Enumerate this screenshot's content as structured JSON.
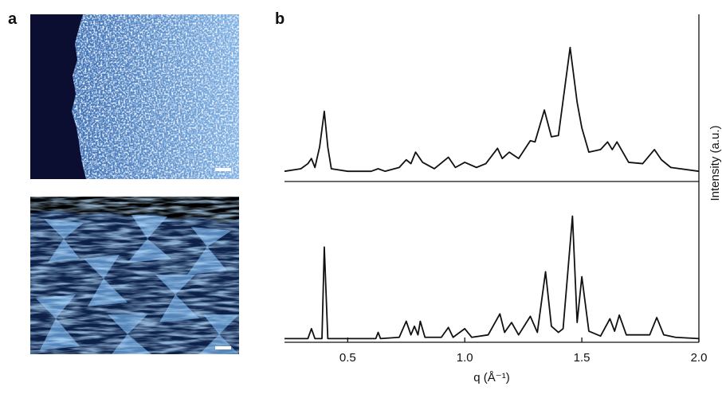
{
  "figure": {
    "panel_a_label": "a",
    "panel_b_label": "b"
  },
  "chart_data": [
    {
      "type": "line",
      "color": "#111111",
      "ylabel": "Intensity (a.u.)",
      "xlim": [
        0.23,
        2.0
      ],
      "ylim": [
        -6,
        125
      ],
      "x": [
        0.23,
        0.3,
        0.33,
        0.345,
        0.36,
        0.38,
        0.4,
        0.415,
        0.43,
        0.5,
        0.6,
        0.63,
        0.66,
        0.72,
        0.75,
        0.77,
        0.79,
        0.82,
        0.87,
        0.93,
        0.96,
        1.0,
        1.05,
        1.09,
        1.14,
        1.16,
        1.19,
        1.23,
        1.28,
        1.3,
        1.34,
        1.37,
        1.4,
        1.45,
        1.48,
        1.5,
        1.53,
        1.58,
        1.61,
        1.63,
        1.65,
        1.7,
        1.76,
        1.81,
        1.84,
        1.88,
        2.0
      ],
      "values": [
        2,
        4,
        8,
        12,
        5,
        21,
        49,
        21,
        4,
        2,
        2,
        4,
        2,
        5,
        11,
        8,
        17,
        9,
        4,
        13,
        5,
        9,
        5,
        8,
        20,
        12,
        17,
        12,
        26,
        25,
        50,
        29,
        30,
        99,
        56,
        36,
        17,
        19,
        25,
        19,
        25,
        9,
        8,
        19,
        11,
        5,
        2
      ]
    },
    {
      "type": "line",
      "color": "#111111",
      "xlabel": "q (Å⁻¹)",
      "xlim": [
        0.23,
        2.0
      ],
      "ylim": [
        -3,
        127
      ],
      "xticks": [
        0.5,
        {
          "value": 1.0,
          "label": "1.0"
        },
        1.5,
        {
          "value": 2.0,
          "label": "2.0"
        }
      ],
      "x": [
        0.23,
        0.33,
        0.345,
        0.36,
        0.39,
        0.4,
        0.415,
        0.5,
        0.62,
        0.63,
        0.64,
        0.72,
        0.75,
        0.77,
        0.785,
        0.8,
        0.81,
        0.83,
        0.9,
        0.93,
        0.95,
        1.0,
        1.03,
        1.1,
        1.15,
        1.17,
        1.2,
        1.23,
        1.28,
        1.31,
        1.345,
        1.37,
        1.4,
        1.42,
        1.46,
        1.48,
        1.5,
        1.53,
        1.58,
        1.62,
        1.64,
        1.66,
        1.69,
        1.79,
        1.82,
        1.85,
        1.9,
        2.0
      ],
      "values": [
        0,
        0,
        8,
        0,
        0,
        74,
        0,
        0,
        0,
        5,
        0,
        1,
        14,
        3,
        10,
        3,
        14,
        1,
        1,
        9,
        1,
        8,
        1,
        3,
        20,
        5,
        13,
        3,
        18,
        5,
        54,
        10,
        5,
        8,
        99,
        13,
        50,
        6,
        2,
        16,
        6,
        19,
        3,
        3,
        17,
        3,
        1,
        0
      ]
    }
  ]
}
